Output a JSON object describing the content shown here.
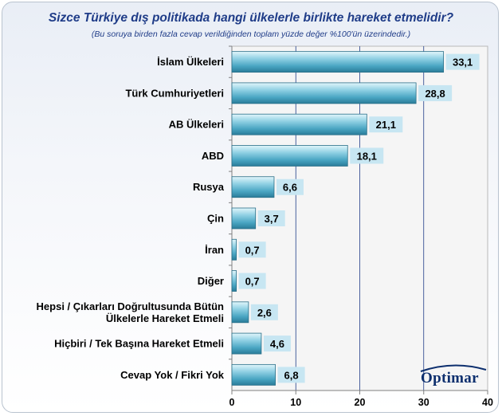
{
  "chart_data": {
    "type": "bar",
    "orientation": "horizontal",
    "title": "Sizce Türkiye dış politikada hangi ülkelerle birlikte hareket etmelidir?",
    "subtitle": "(Bu soruya birden fazla cevap verildiğinden toplam yüzde değer %100'ün üzerindedir.)",
    "categories": [
      [
        "İslam Ülkeleri"
      ],
      [
        "Türk Cumhuriyetleri"
      ],
      [
        "AB Ülkeleri"
      ],
      [
        "ABD"
      ],
      [
        "Rusya"
      ],
      [
        "Çin"
      ],
      [
        "İran"
      ],
      [
        "Diğer"
      ],
      [
        "Hepsi / Çıkarları Doğrultusunda Bütün",
        "Ülkelerle Hareket Etmeli"
      ],
      [
        "Hiçbiri / Tek Başına Hareket Etmeli"
      ],
      [
        "Cevap Yok / Fikri Yok"
      ]
    ],
    "values": [
      33.1,
      28.8,
      21.1,
      18.1,
      6.6,
      3.7,
      0.7,
      0.7,
      2.6,
      4.6,
      6.8
    ],
    "value_labels": [
      "33,1",
      "28,8",
      "21,1",
      "18,1",
      "6,6",
      "3,7",
      "0,7",
      "0,7",
      "2,6",
      "4,6",
      "6,8"
    ],
    "xlim": [
      0,
      40
    ],
    "xticks": [
      0,
      10,
      20,
      30,
      40
    ],
    "xtick_labels": [
      "0",
      "10",
      "20",
      "30",
      "40"
    ],
    "grid": "vertical",
    "legend": "none",
    "colors": {
      "bar_light": "#cfeef7",
      "bar_mid": "#5fb8d2",
      "bar_dark": "#2b7f9b",
      "label_box": "#c7e6f2",
      "title": "#1f3c88"
    }
  },
  "logo": {
    "text": "Optimar"
  }
}
